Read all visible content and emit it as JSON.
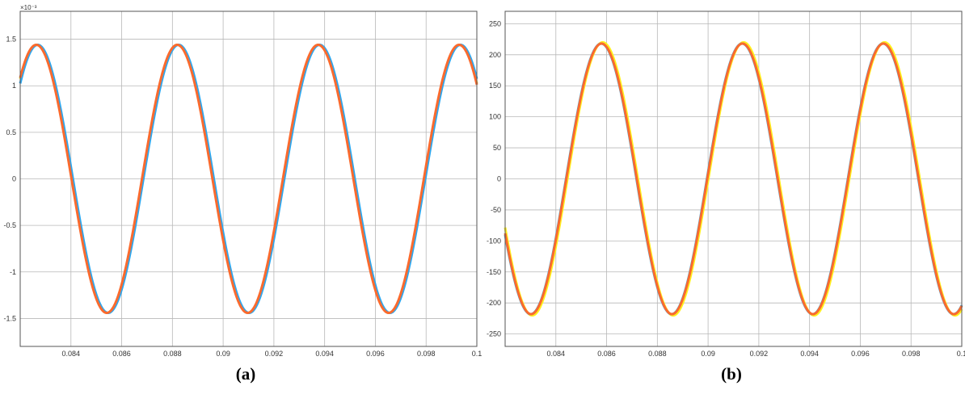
{
  "colors": {
    "phase_a": "#FFF01E",
    "phase_b": "#2CA8F0",
    "phase_c": "#FA6A2E",
    "grid": "#B8B8B8",
    "axis": "#555555"
  },
  "chart_data": [
    {
      "type": "line",
      "caption": "(a)",
      "exponent_label": "×10⁻³",
      "xlim": [
        0.082,
        0.1
      ],
      "ylim": [
        -1.8,
        1.8
      ],
      "x_ticks": [
        0.084,
        0.086,
        0.088,
        0.09,
        0.092,
        0.094,
        0.096,
        0.098,
        0.1
      ],
      "x_tick_labels": [
        "0.084",
        "0.086",
        "0.088",
        "0.09",
        "0.092",
        "0.094",
        "0.096",
        "0.098",
        "0.1"
      ],
      "y_ticks": [
        -1.5,
        -1,
        -0.5,
        0,
        0.5,
        1,
        1.5
      ],
      "y_tick_labels": [
        "-1.5",
        "-1",
        "-0.5",
        "0",
        "0.5",
        "1",
        "1.5"
      ],
      "grid": true,
      "amplitudes": [
        1.44,
        1.44,
        1.44
      ],
      "peak_times": [
        0.0882,
        0.0938,
        0.0993
      ],
      "frequency": 180,
      "colors": [
        "#FFF01E",
        "#2CA8F0",
        "#FA6A2E"
      ]
    },
    {
      "type": "line",
      "caption": "(b)",
      "exponent_label": "",
      "xlim": [
        0.082,
        0.1
      ],
      "ylim": [
        -270,
        270
      ],
      "x_ticks": [
        0.084,
        0.086,
        0.088,
        0.09,
        0.092,
        0.094,
        0.096,
        0.098,
        0.1
      ],
      "x_tick_labels": [
        "0.084",
        "0.086",
        "0.088",
        "0.09",
        "0.092",
        "0.094",
        "0.096",
        "0.098",
        "0.1"
      ],
      "y_ticks": [
        -250,
        -200,
        -150,
        -100,
        -50,
        0,
        50,
        100,
        150,
        200,
        250
      ],
      "y_tick_labels": [
        "-250",
        "-200",
        "-150",
        "-100",
        "-50",
        "0",
        "50",
        "100",
        "150",
        "200",
        "250"
      ],
      "grid": true,
      "amplitudes": [
        220,
        218,
        218
      ],
      "peak_times": [
        0.0914,
        0.0969,
        0.0858
      ],
      "frequency": 180,
      "colors": [
        "#FFF01E",
        "#2CA8F0",
        "#FA6A2E"
      ]
    }
  ]
}
